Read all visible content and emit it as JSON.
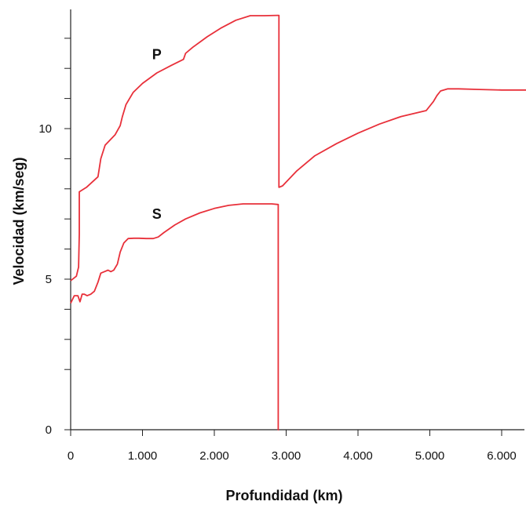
{
  "chart_data": {
    "type": "line",
    "title": "",
    "xlabel": "Profundidad (km)",
    "ylabel": "Velocidad (km/seg)",
    "xlim": [
      0,
      6371
    ],
    "ylim": [
      0,
      14
    ],
    "x_tick_labels": [
      {
        "value": 0,
        "label": "0"
      },
      {
        "value": 1000,
        "label": "1.000"
      },
      {
        "value": 2000,
        "label": "2.000"
      },
      {
        "value": 3000,
        "label": "3.000"
      },
      {
        "value": 4000,
        "label": "4.000"
      },
      {
        "value": 5000,
        "label": "5.000"
      },
      {
        "value": 6000,
        "label": "6.000"
      }
    ],
    "y_tick_labels": [
      {
        "value": 0,
        "label": "0"
      },
      {
        "value": 5,
        "label": "5"
      },
      {
        "value": 10,
        "label": "10"
      }
    ],
    "y_minor_ticks": [
      2,
      3,
      4,
      6,
      7,
      8,
      9,
      11,
      12,
      13
    ],
    "grid": false,
    "line_color": "#e8303a",
    "series": [
      {
        "name": "P",
        "x": [
          0,
          80,
          110,
          120,
          120,
          220,
          380,
          420,
          480,
          540,
          620,
          690,
          720,
          770,
          870,
          1000,
          1200,
          1400,
          1570,
          1600,
          1700,
          1900,
          2100,
          2300,
          2500,
          2700,
          2880,
          2890,
          2900,
          2900,
          2950,
          3150,
          3400,
          3700,
          4000,
          4300,
          4600,
          4950,
          5050,
          5100,
          5150,
          5250,
          5400,
          5700,
          6000,
          6371
        ],
        "y": [
          4.95,
          5.1,
          5.4,
          6.5,
          7.9,
          8.05,
          8.4,
          9.0,
          9.45,
          9.6,
          9.8,
          10.1,
          10.4,
          10.8,
          11.2,
          11.5,
          11.85,
          12.1,
          12.3,
          12.5,
          12.7,
          13.05,
          13.35,
          13.6,
          13.75,
          13.75,
          13.76,
          13.76,
          13.76,
          8.05,
          8.1,
          8.6,
          9.1,
          9.5,
          9.85,
          10.15,
          10.4,
          10.6,
          10.9,
          11.1,
          11.25,
          11.32,
          11.32,
          11.3,
          11.28,
          11.28
        ]
      },
      {
        "name": "S",
        "x": [
          0,
          50,
          100,
          130,
          160,
          190,
          230,
          280,
          330,
          380,
          420,
          470,
          520,
          560,
          600,
          650,
          690,
          740,
          800,
          880,
          950,
          1050,
          1150,
          1220,
          1300,
          1450,
          1600,
          1800,
          2000,
          2200,
          2400,
          2600,
          2800,
          2890,
          2890,
          2900
        ],
        "y": [
          4.2,
          4.45,
          4.45,
          4.25,
          4.5,
          4.5,
          4.45,
          4.5,
          4.6,
          4.9,
          5.2,
          5.25,
          5.3,
          5.25,
          5.3,
          5.5,
          5.9,
          6.2,
          6.35,
          6.36,
          6.36,
          6.35,
          6.35,
          6.4,
          6.55,
          6.8,
          7.0,
          7.2,
          7.35,
          7.45,
          7.5,
          7.5,
          7.5,
          7.48,
          0,
          0
        ]
      }
    ],
    "annotations": [
      {
        "text": "P",
        "x": 1200,
        "y": 12.3
      },
      {
        "text": "S",
        "x": 1200,
        "y": 7.0
      }
    ]
  }
}
